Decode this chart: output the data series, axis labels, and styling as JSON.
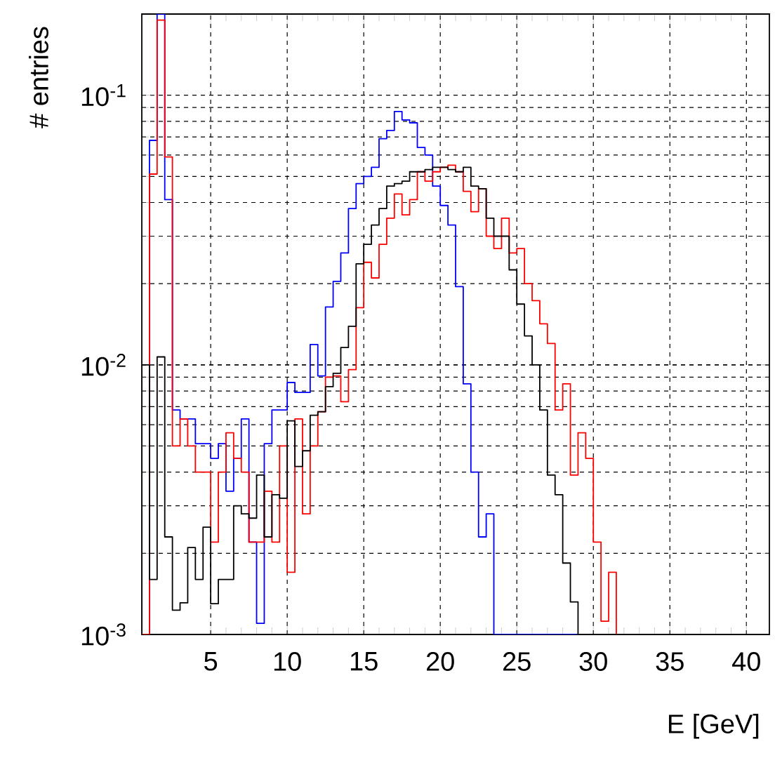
{
  "chart_data": {
    "type": "histogram",
    "xlabel": "E [GeV]",
    "ylabel": "# entries",
    "bins": [
      0.5,
      1.0,
      1.5,
      2.0,
      2.5,
      3.0,
      3.5,
      4.0,
      4.5,
      5.0,
      5.5,
      6.0,
      6.5,
      7.0,
      7.5,
      8.0,
      8.5,
      9.0,
      9.5,
      10.0,
      10.5,
      11.0,
      11.5,
      12.0,
      12.5,
      13.0,
      13.5,
      14.0,
      14.5,
      15.0,
      15.5,
      16.0,
      16.5,
      17.0,
      17.5,
      18.0,
      18.5,
      19.0,
      19.5,
      20.0,
      20.5,
      21.0,
      21.5,
      22.0,
      22.5,
      23.0,
      23.5,
      24.0,
      24.5,
      25.0,
      25.5,
      26.0,
      26.5,
      27.0,
      27.5,
      28.0,
      28.5,
      29.0,
      29.5,
      30.0,
      30.5,
      31.0,
      31.5
    ],
    "series": [
      {
        "color": "#0000ff",
        "values": [
          null,
          0.068,
          0.2,
          0.041,
          0.0068,
          0.0063,
          0.0063,
          0.0051,
          0.0051,
          0.0045,
          0.0051,
          0.0034,
          0.0045,
          0.0063,
          0.0022,
          0.0011,
          0.0051,
          0.0068,
          0.0068,
          0.0086,
          0.0079,
          0.0079,
          0.0119,
          0.0091,
          0.0164,
          0.0204,
          0.026,
          0.038,
          0.047,
          0.05,
          0.054,
          0.069,
          0.074,
          0.087,
          0.081,
          0.079,
          0.064,
          0.06,
          0.046,
          0.039,
          0.033,
          0.0195,
          0.0085,
          0.004,
          0.0023,
          0.0028,
          null,
          null,
          null,
          null,
          null,
          null,
          null,
          null,
          null,
          null,
          null,
          null,
          null,
          null,
          null,
          null
        ]
      },
      {
        "color": "#ff0000",
        "values": [
          null,
          0.051,
          0.19,
          0.059,
          0.005,
          0.0063,
          0.005,
          0.004,
          0.004,
          0.0022,
          0.004,
          0.0056,
          0.0045,
          0.004,
          0.0022,
          0.0022,
          0.0034,
          0.0022,
          0.005,
          0.0017,
          0.0063,
          0.0028,
          0.005,
          0.0067,
          0.009,
          0.0091,
          0.0073,
          0.0096,
          0.0163,
          0.024,
          0.021,
          0.028,
          0.035,
          0.043,
          0.036,
          0.041,
          0.052,
          0.048,
          0.052,
          0.054,
          0.055,
          0.052,
          0.044,
          0.037,
          0.045,
          0.03,
          0.027,
          0.035,
          0.026,
          0.027,
          0.02,
          0.0173,
          0.0142,
          0.012,
          0.0068,
          0.0085,
          0.0039,
          0.0056,
          0.0045,
          0.0022,
          0.00112,
          0.0017
        ]
      },
      {
        "color": "#000000",
        "values": [
          0.01,
          0.0016,
          0.0107,
          0.0023,
          0.00123,
          0.00131,
          0.0021,
          0.0016,
          0.0025,
          0.0013,
          0.0016,
          0.0016,
          0.003,
          0.0028,
          0.0027,
          0.0039,
          0.0023,
          0.0033,
          0.0032,
          0.0062,
          0.0042,
          0.0048,
          0.0065,
          0.0067,
          0.0083,
          0.0093,
          0.0116,
          0.0139,
          0.0237,
          0.028,
          0.033,
          0.038,
          0.046,
          0.047,
          0.048,
          0.052,
          0.052,
          0.053,
          0.054,
          0.054,
          0.053,
          0.052,
          0.054,
          0.046,
          0.045,
          0.035,
          0.03,
          0.03,
          0.0225,
          0.0168,
          0.0128,
          0.01,
          0.0068,
          0.0039,
          0.0033,
          0.00184,
          0.00132,
          null,
          null,
          null,
          null,
          null
        ]
      }
    ],
    "xlim": [
      0.5,
      41.5
    ],
    "ylim": [
      0.001,
      0.2
    ],
    "xticks": [
      5,
      10,
      15,
      20,
      25,
      30,
      35,
      40
    ],
    "yticks": [
      {
        "value": 0.001,
        "label": "10$^{-3}$"
      },
      {
        "value": 0.01,
        "label": "10$^{-2}$"
      },
      {
        "value": 0.1,
        "label": "10$^{-1}$"
      }
    ],
    "log": "y",
    "grid": true
  }
}
